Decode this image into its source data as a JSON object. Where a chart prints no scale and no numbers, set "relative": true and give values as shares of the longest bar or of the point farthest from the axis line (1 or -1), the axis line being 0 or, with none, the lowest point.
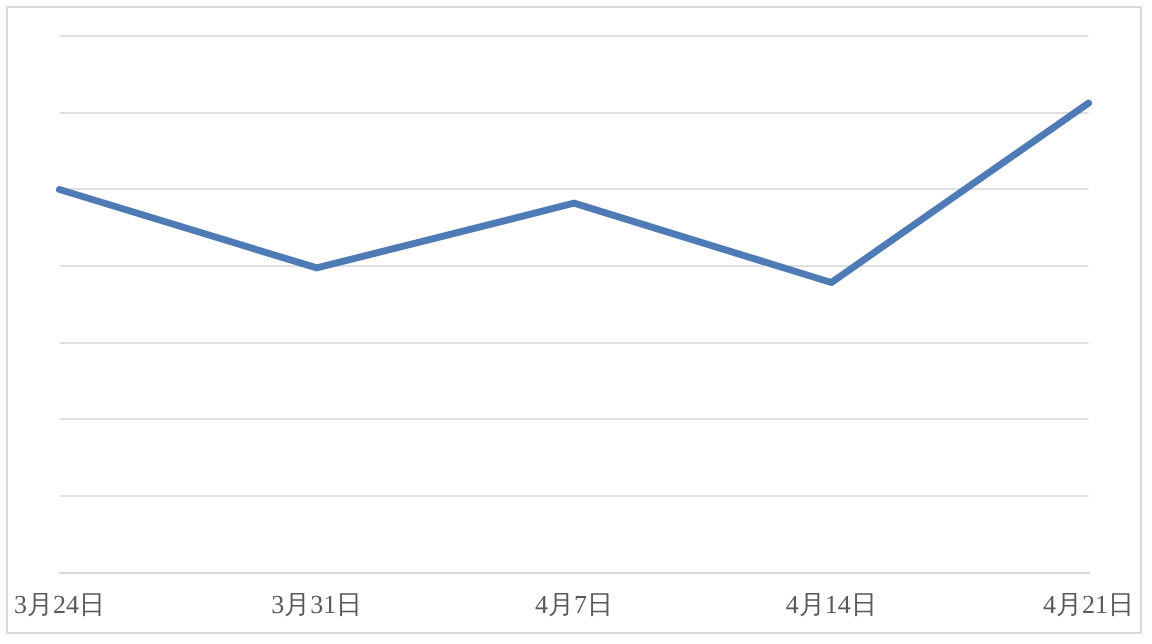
{
  "chart_data": {
    "type": "line",
    "categories": [
      "3月24日",
      "3月31日",
      "4月7日",
      "4月14日",
      "4月21日"
    ],
    "series": [
      {
        "color": "#4e7ab5",
        "values": [
          0.816,
          0.649,
          0.787,
          0.618,
          1
        ]
      }
    ],
    "relative": true,
    "grid": "y",
    "legend": false,
    "marker": "none",
    "line_style": "solid"
  }
}
